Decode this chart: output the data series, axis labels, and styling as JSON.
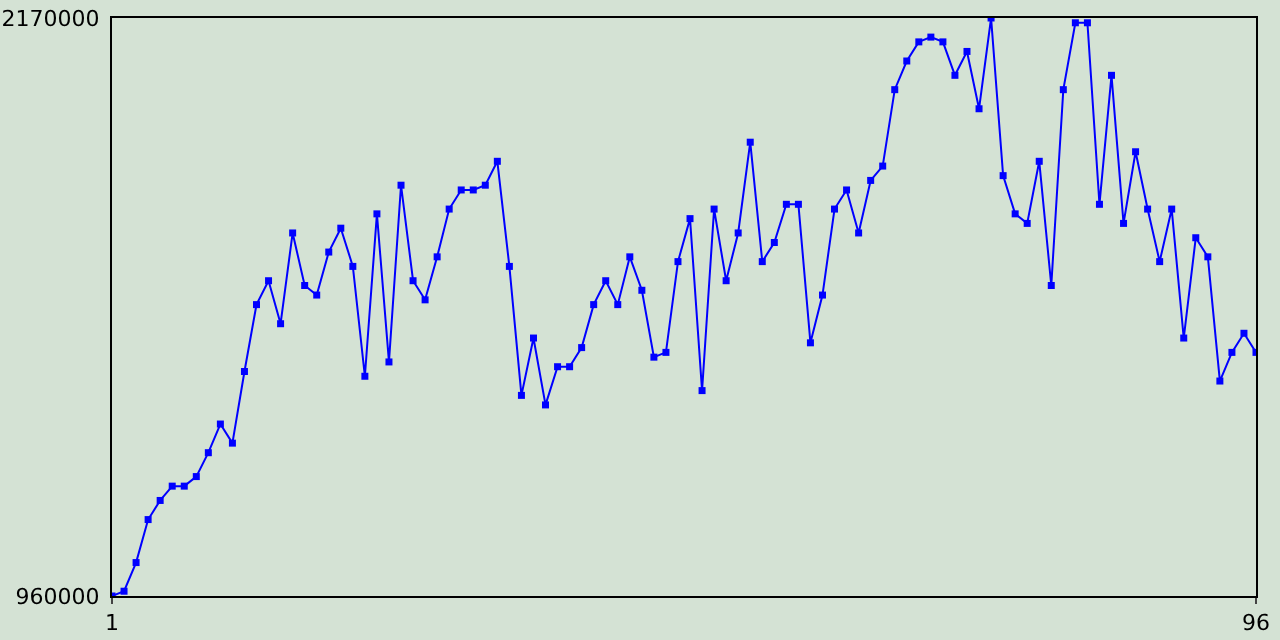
{
  "chart_data": {
    "type": "line",
    "x": [
      1,
      2,
      3,
      4,
      5,
      6,
      7,
      8,
      9,
      10,
      11,
      12,
      13,
      14,
      15,
      16,
      17,
      18,
      19,
      20,
      21,
      22,
      23,
      24,
      25,
      26,
      27,
      28,
      29,
      30,
      31,
      32,
      33,
      34,
      35,
      36,
      37,
      38,
      39,
      40,
      41,
      42,
      43,
      44,
      45,
      46,
      47,
      48,
      49,
      50,
      51,
      52,
      53,
      54,
      55,
      56,
      57,
      58,
      59,
      60,
      61,
      62,
      63,
      64,
      65,
      66,
      67,
      68,
      69,
      70,
      71,
      72,
      73,
      74,
      75,
      76,
      77,
      78,
      79,
      80,
      81,
      82,
      83,
      84,
      85,
      86,
      87,
      88,
      89,
      90,
      91,
      92,
      93,
      94,
      95,
      96
    ],
    "series": [
      {
        "color": "#0000ff",
        "values": [
          960000,
          970000,
          1030000,
          1120000,
          1160000,
          1190000,
          1190000,
          1210000,
          1260000,
          1320000,
          1280000,
          1430000,
          1570000,
          1620000,
          1530000,
          1720000,
          1610000,
          1590000,
          1680000,
          1730000,
          1650000,
          1420000,
          1760000,
          1450000,
          1820000,
          1620000,
          1580000,
          1670000,
          1770000,
          1810000,
          1810000,
          1820000,
          1870000,
          1650000,
          1380000,
          1500000,
          1360000,
          1440000,
          1440000,
          1480000,
          1570000,
          1620000,
          1570000,
          1670000,
          1600000,
          1460000,
          1470000,
          1660000,
          1750000,
          1390000,
          1770000,
          1620000,
          1720000,
          1910000,
          1660000,
          1700000,
          1780000,
          1780000,
          1490000,
          1590000,
          1770000,
          1810000,
          1720000,
          1830000,
          1860000,
          2020000,
          2080000,
          2120000,
          2130000,
          2120000,
          2050000,
          2100000,
          1980000,
          2170000,
          1840000,
          1760000,
          1740000,
          1870000,
          1610000,
          2020000,
          2160000,
          2160000,
          1780000,
          2050000,
          1740000,
          1890000,
          1770000,
          1660000,
          1770000,
          1500000,
          1710000,
          1670000,
          1410000,
          1470000,
          1510000,
          1470000
        ]
      }
    ],
    "xlim": [
      1,
      96
    ],
    "xticks": [
      1,
      96
    ],
    "ylim": [
      960000,
      2170000
    ],
    "yticks": [
      960000,
      2170000
    ],
    "marker": "square",
    "line_style": "solid"
  }
}
